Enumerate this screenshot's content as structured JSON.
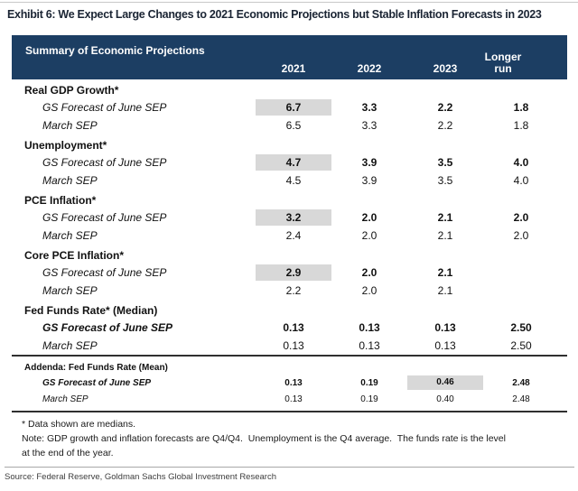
{
  "exhibit": {
    "title": "Exhibit 6: We Expect Large Changes to 2021 Economic Projections but Stable Inflation Forecasts in 2023",
    "source": "Source: Federal Reserve, Goldman Sachs Global Investment Research"
  },
  "colors": {
    "header_bg": "#1c3e63",
    "header_text": "#ffffff",
    "highlight": "#d8d8d8"
  },
  "table": {
    "header": {
      "title": "Summary of Economic Projections",
      "columns": [
        "2021",
        "2022",
        "2023",
        "Longer run"
      ]
    },
    "sections": [
      {
        "label": "Real GDP Growth*",
        "rows": [
          {
            "label": "GS Forecast of June SEP",
            "values": [
              "6.7",
              "3.3",
              "2.2",
              "1.8"
            ],
            "highlight_col": 0
          },
          {
            "label": "March SEP",
            "values": [
              "6.5",
              "3.3",
              "2.2",
              "1.8"
            ]
          }
        ]
      },
      {
        "label": "Unemployment*",
        "rows": [
          {
            "label": "GS Forecast of June SEP",
            "values": [
              "4.7",
              "3.9",
              "3.5",
              "4.0"
            ],
            "highlight_col": 0
          },
          {
            "label": "March SEP",
            "values": [
              "4.5",
              "3.9",
              "3.5",
              "4.0"
            ]
          }
        ]
      },
      {
        "label": "PCE Inflation*",
        "rows": [
          {
            "label": "GS Forecast of June SEP",
            "values": [
              "3.2",
              "2.0",
              "2.1",
              "2.0"
            ],
            "highlight_col": 0
          },
          {
            "label": "March SEP",
            "values": [
              "2.4",
              "2.0",
              "2.1",
              "2.0"
            ]
          }
        ]
      },
      {
        "label": "Core PCE Inflation*",
        "rows": [
          {
            "label": "GS Forecast of June SEP",
            "values": [
              "2.9",
              "2.0",
              "2.1",
              ""
            ],
            "highlight_col": 0
          },
          {
            "label": "March SEP",
            "values": [
              "2.2",
              "2.0",
              "2.1",
              ""
            ]
          }
        ]
      },
      {
        "label": "Fed Funds Rate* (Median)",
        "rows": [
          {
            "label": "GS Forecast of June SEP",
            "values": [
              "0.13",
              "0.13",
              "0.13",
              "2.50"
            ]
          },
          {
            "label": "March SEP",
            "values": [
              "0.13",
              "0.13",
              "0.13",
              "2.50"
            ]
          }
        ]
      }
    ],
    "addenda": {
      "label": "Addenda: Fed Funds Rate (Mean)",
      "rows": [
        {
          "label": "GS Forecast of June SEP",
          "values": [
            "0.13",
            "0.19",
            "0.46",
            "2.48"
          ],
          "highlight_col": 2
        },
        {
          "label": "March SEP",
          "values": [
            "0.13",
            "0.19",
            "0.40",
            "2.48"
          ]
        }
      ]
    },
    "footnotes": {
      "medians": "* Data shown are medians.",
      "note_line1": "Note: GDP growth and inflation forecasts are Q4/Q4.  Unemployment is the Q4 average.  The funds rate is the level",
      "note_line2": "at the end of the year."
    }
  }
}
